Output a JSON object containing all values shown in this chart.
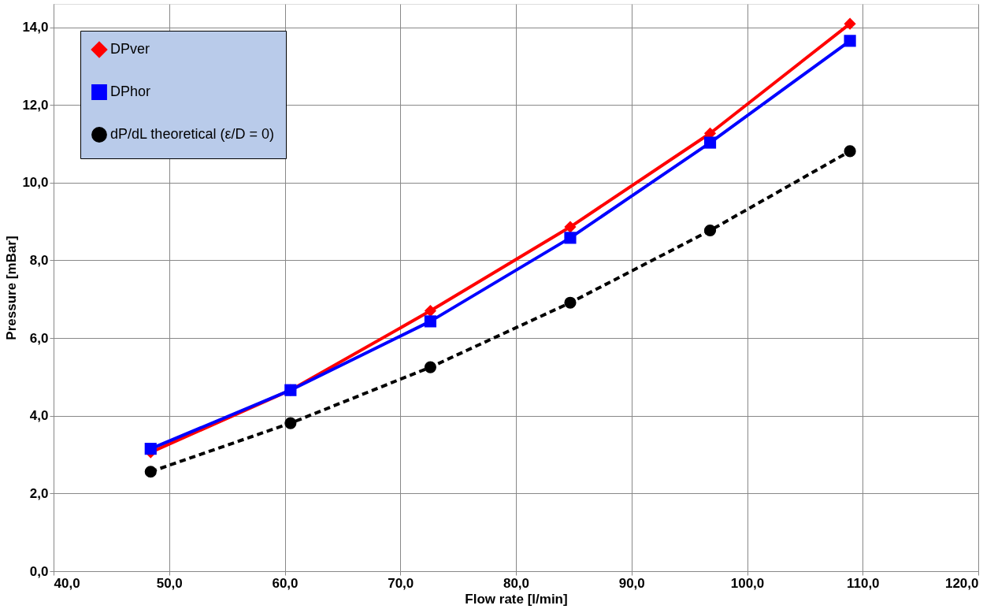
{
  "chart_data": {
    "type": "line",
    "xlabel": "Flow rate [l/min]",
    "ylabel": "Pressure [mBar]",
    "x": [
      48.4,
      60.5,
      72.6,
      84.7,
      96.8,
      108.9
    ],
    "series": [
      {
        "name": "DPver",
        "color": "#ff0000",
        "marker": "diamond",
        "line_style": "solid",
        "values": [
          3.06,
          4.66,
          6.7,
          8.86,
          11.27,
          14.09
        ]
      },
      {
        "name": "DPhor",
        "color": "#0000ff",
        "marker": "square",
        "line_style": "solid",
        "values": [
          3.15,
          4.66,
          6.43,
          8.58,
          11.03,
          13.65
        ]
      },
      {
        "name": "dP/dL theoretical (ε/D = 0)",
        "color": "#000000",
        "marker": "circle",
        "line_style": "dashed",
        "values": [
          2.56,
          3.81,
          5.25,
          6.91,
          8.77,
          10.81
        ]
      }
    ],
    "xlim": [
      40,
      120
    ],
    "xticks": [
      {
        "value": 40,
        "label": "40,0"
      },
      {
        "value": 50,
        "label": "50,0"
      },
      {
        "value": 60,
        "label": "60,0"
      },
      {
        "value": 70,
        "label": "70,0"
      },
      {
        "value": 80,
        "label": "80,0"
      },
      {
        "value": 90,
        "label": "90,0"
      },
      {
        "value": 100,
        "label": "100,0"
      },
      {
        "value": 110,
        "label": "110,0"
      },
      {
        "value": 120,
        "label": "120,0"
      }
    ],
    "ylim": [
      0,
      14.6
    ],
    "yticks": [
      {
        "value": 0,
        "label": "0,0"
      },
      {
        "value": 2,
        "label": "2,0"
      },
      {
        "value": 4,
        "label": "4,0"
      },
      {
        "value": 6,
        "label": "6,0"
      },
      {
        "value": 8,
        "label": "8,0"
      },
      {
        "value": 10,
        "label": "10,0"
      },
      {
        "value": 12,
        "label": "12,0"
      },
      {
        "value": 14,
        "label": "14,0"
      }
    ],
    "grid": true,
    "legend": "top left"
  }
}
